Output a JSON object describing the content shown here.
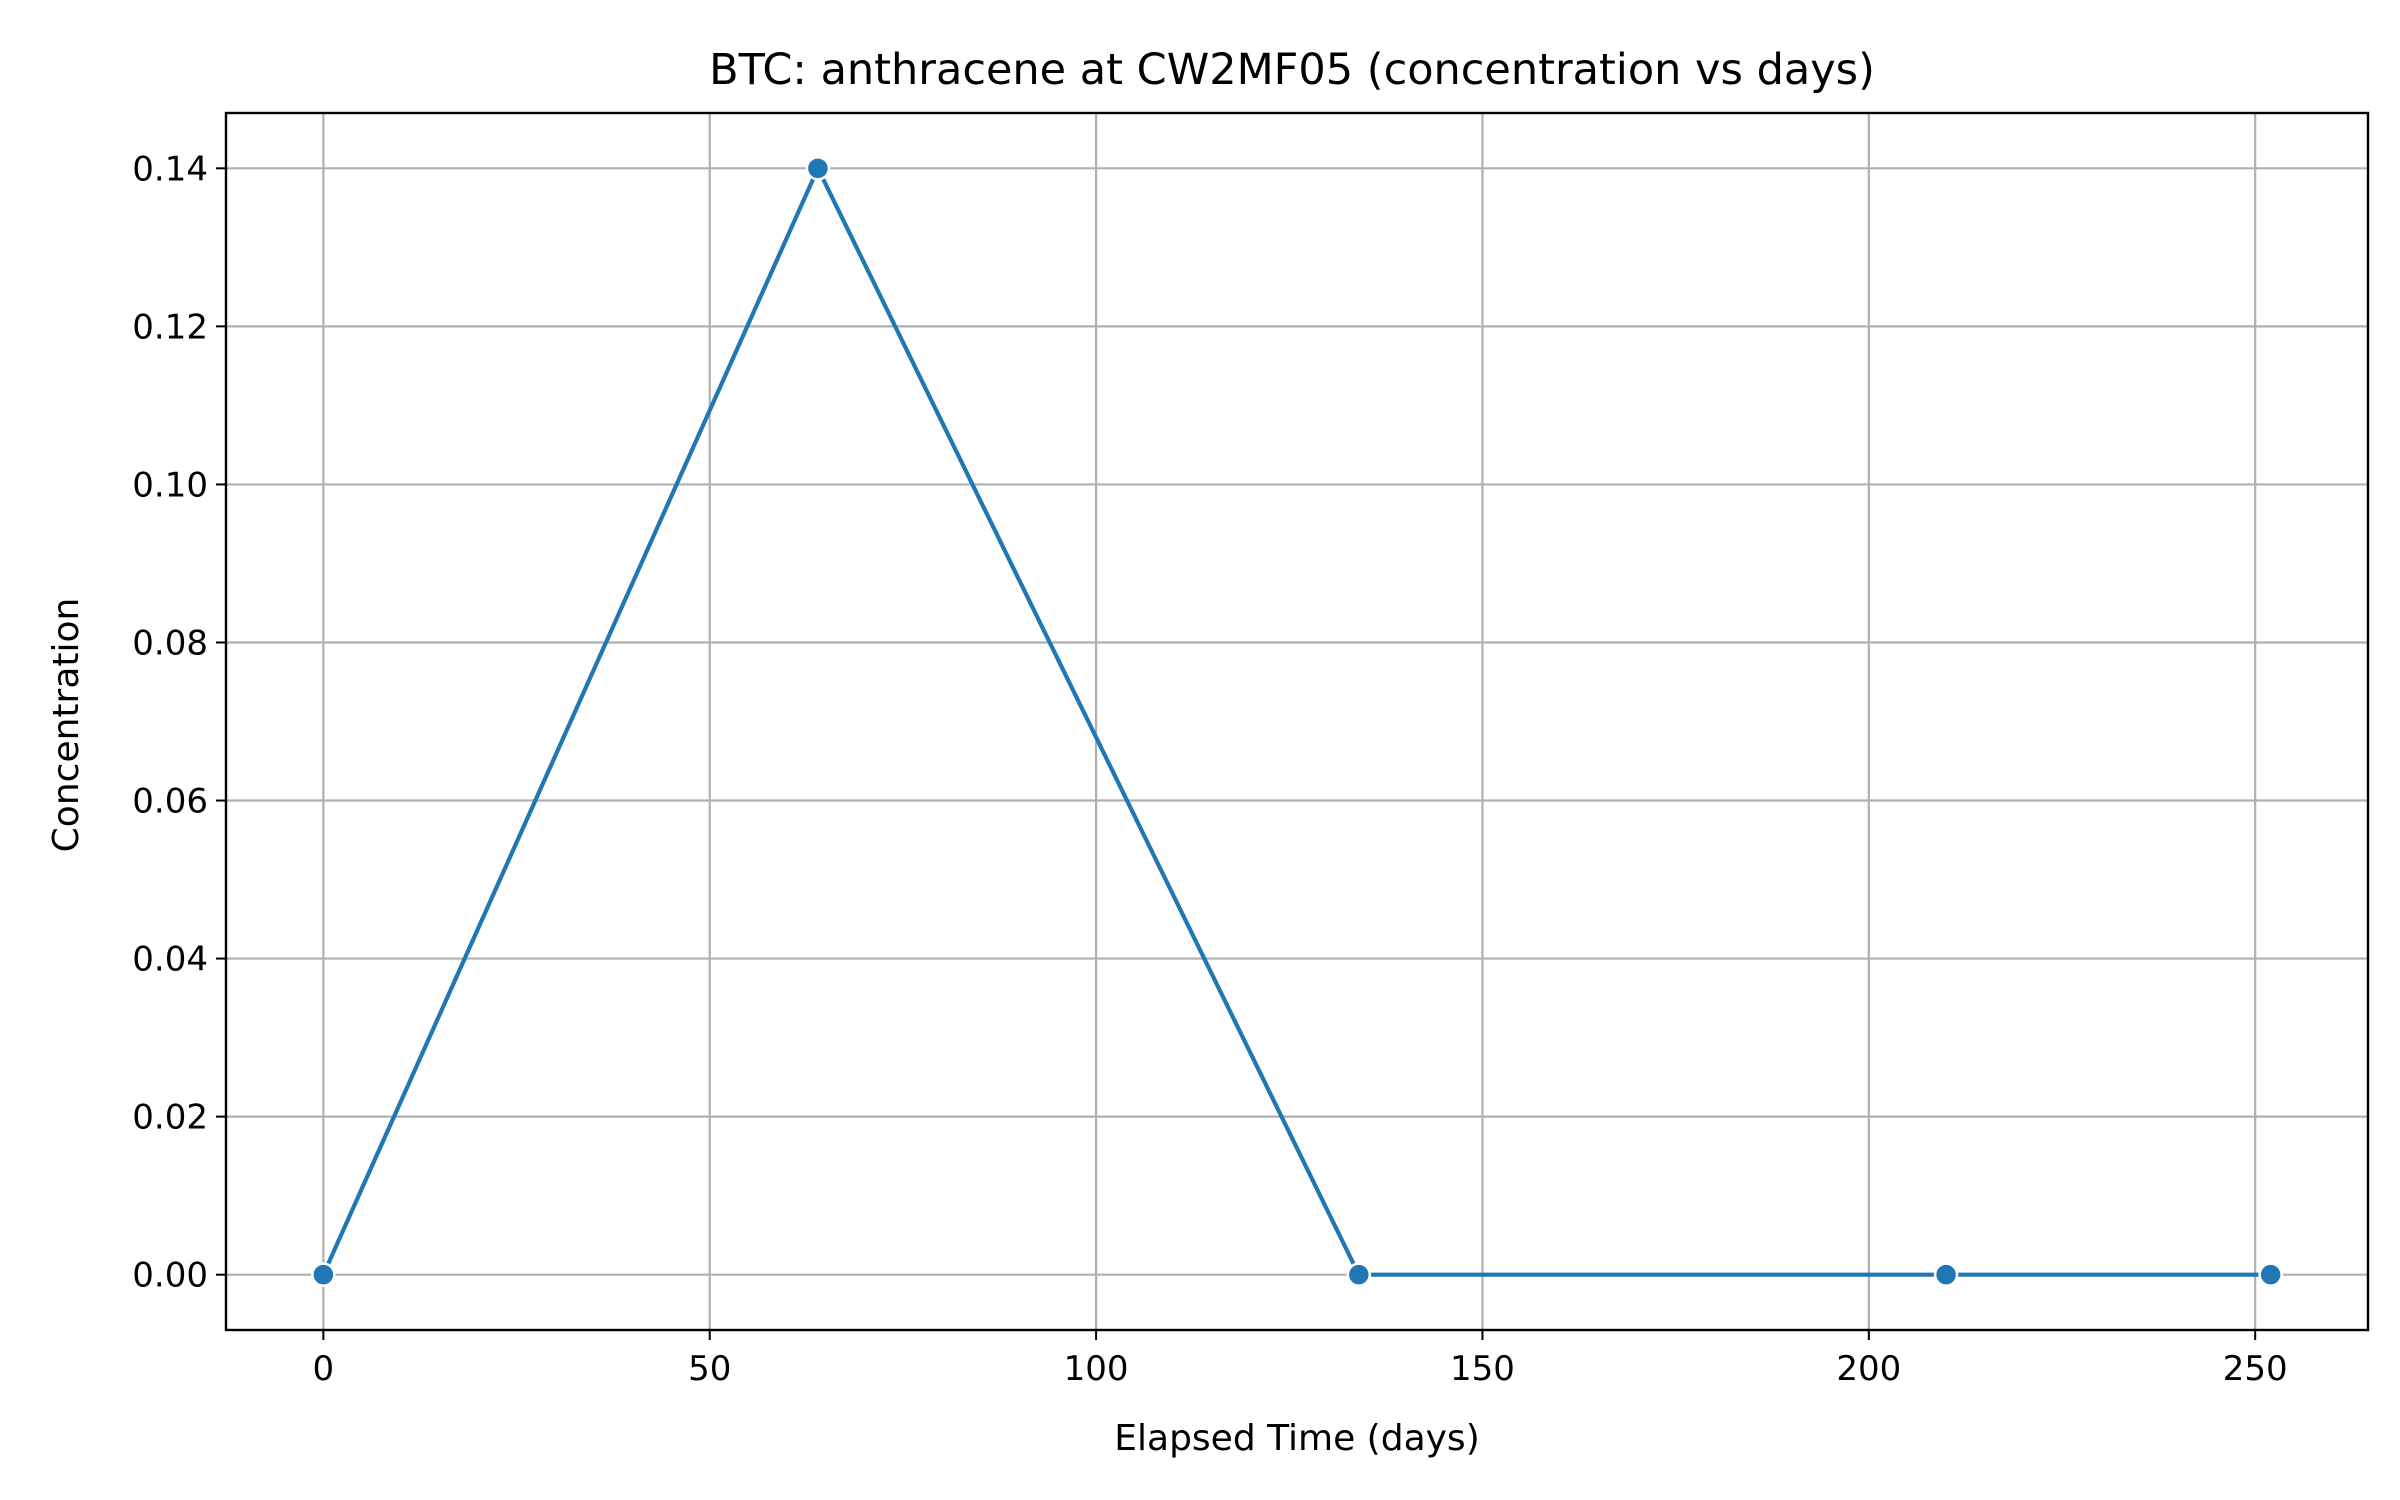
{
  "chart_data": {
    "type": "line",
    "title": "BTC: anthracene at CW2MF05 (concentration vs days)",
    "xlabel": "Elapsed Time (days)",
    "ylabel": "Concentration",
    "xlim": [
      -12.6,
      264.6
    ],
    "ylim": [
      -0.007,
      0.147
    ],
    "xticks": [
      0,
      50,
      100,
      150,
      200,
      250
    ],
    "xtick_labels": [
      "0",
      "50",
      "100",
      "150",
      "200",
      "250"
    ],
    "yticks": [
      0.0,
      0.02,
      0.04,
      0.06,
      0.08,
      0.1,
      0.12,
      0.14
    ],
    "ytick_labels": [
      "0.00",
      "0.02",
      "0.04",
      "0.06",
      "0.08",
      "0.10",
      "0.12",
      "0.14"
    ],
    "grid": true,
    "series": [
      {
        "color": "#1f77b4",
        "marker": "circle",
        "x": [
          0,
          64,
          134,
          210,
          252
        ],
        "y": [
          0.0,
          0.14,
          0.0,
          0.0,
          0.0
        ]
      }
    ]
  }
}
